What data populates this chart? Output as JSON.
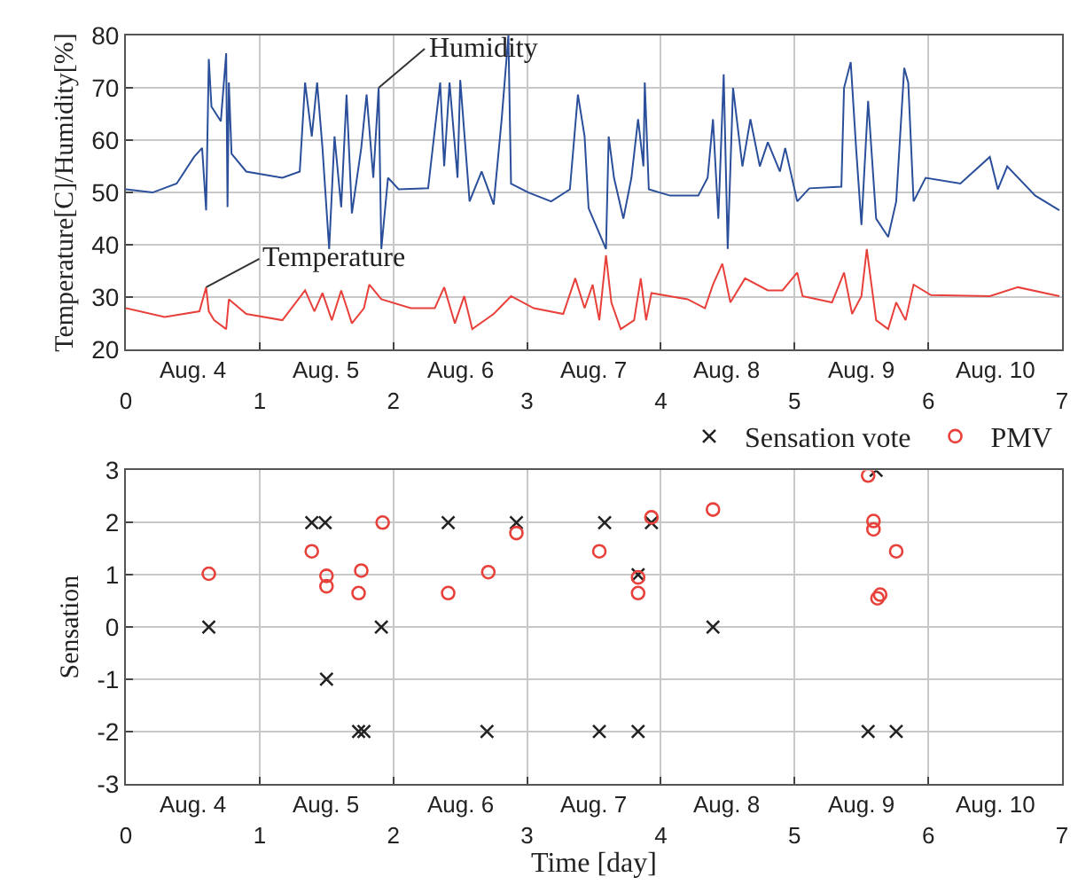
{
  "chart_data": [
    {
      "type": "line",
      "ylabel": "Temperature[C]/Humidity[%]",
      "xlim": [
        0,
        7
      ],
      "xticks": [
        0,
        1,
        2,
        3,
        4,
        5,
        6,
        7
      ],
      "ylim": [
        20,
        80
      ],
      "yticks": [
        20,
        30,
        40,
        50,
        60,
        70,
        80
      ],
      "grid": true,
      "legend": false,
      "line_style": "solid",
      "marker": "none",
      "annotations": [
        {
          "text": "Humidity",
          "x": 1.89,
          "y": 70
        },
        {
          "text": "Temperature",
          "x": 0.6,
          "y": 31.9
        },
        "Aug. 4",
        "Aug. 5",
        "Aug. 6",
        "Aug. 7",
        "Aug. 8",
        "Aug. 9",
        "Aug. 10"
      ],
      "series": [
        {
          "color": "#2b4f9a",
          "x": [
            0,
            0.2,
            0.38,
            0.51,
            0.57,
            0.6,
            0.62,
            0.64,
            0.71,
            0.75,
            0.76,
            0.77,
            0.79,
            0.9,
            1.17,
            1.3,
            1.34,
            1.39,
            1.43,
            1.47,
            1.52,
            1.56,
            1.61,
            1.65,
            1.69,
            1.76,
            1.8,
            1.85,
            1.89,
            1.91,
            1.96,
            2.04,
            2.26,
            2.35,
            2.38,
            2.42,
            2.48,
            2.5,
            2.57,
            2.66,
            2.75,
            2.81,
            2.86,
            2.88,
            3.01,
            3.18,
            3.32,
            3.38,
            3.43,
            3.46,
            3.59,
            3.61,
            3.65,
            3.72,
            3.78,
            3.83,
            3.87,
            3.88,
            3.91,
            4.07,
            4.28,
            4.35,
            4.39,
            4.43,
            4.47,
            4.5,
            4.54,
            4.61,
            4.67,
            4.74,
            4.8,
            4.89,
            4.93,
            5.02,
            5.11,
            5.35,
            5.37,
            5.42,
            5.46,
            5.5,
            5.55,
            5.61,
            5.7,
            5.76,
            5.82,
            5.85,
            5.89,
            5.98,
            6.24,
            6.46,
            6.52,
            6.59,
            6.8,
            6.98
          ],
          "values": [
            50.6,
            50,
            51.7,
            56.8,
            58.5,
            46.6,
            75.5,
            66.4,
            63.6,
            76.6,
            47.2,
            71,
            57.4,
            54,
            52.8,
            54,
            71,
            60.7,
            71,
            58.5,
            39.2,
            60.7,
            47.2,
            68.7,
            46,
            58.5,
            68.7,
            52.8,
            70,
            39.2,
            52.8,
            50.6,
            50.8,
            71,
            55,
            71,
            52.8,
            71.5,
            48.3,
            54,
            47.7,
            64,
            80,
            51.7,
            50,
            48.3,
            50.6,
            68.7,
            60.7,
            47,
            39.2,
            60.7,
            52.8,
            45,
            52.8,
            64,
            55,
            71,
            50.6,
            49.4,
            49.4,
            52.8,
            64,
            45,
            72.6,
            39.2,
            70,
            55,
            64,
            55,
            59.6,
            54,
            58.5,
            48.3,
            50.8,
            51.1,
            70,
            74.9,
            58.5,
            43.8,
            67.5,
            45,
            41.5,
            48.3,
            73.8,
            71,
            48.3,
            52.8,
            51.7,
            56.8,
            50.6,
            55,
            49.4,
            46.6
          ]
        },
        {
          "color": "#e8403a",
          "x": [
            0,
            0.29,
            0.55,
            0.6,
            0.62,
            0.66,
            0.75,
            0.77,
            0.9,
            1.17,
            1.34,
            1.41,
            1.47,
            1.54,
            1.61,
            1.69,
            1.78,
            1.82,
            1.91,
            2.13,
            2.31,
            2.38,
            2.46,
            2.53,
            2.59,
            2.75,
            2.88,
            3.05,
            3.27,
            3.36,
            3.43,
            3.49,
            3.54,
            3.59,
            3.63,
            3.7,
            3.8,
            3.85,
            3.89,
            3.93,
            4.2,
            4.33,
            4.39,
            4.46,
            4.52,
            4.63,
            4.8,
            4.91,
            5.02,
            5.06,
            5.28,
            5.37,
            5.43,
            5.5,
            5.54,
            5.61,
            5.7,
            5.76,
            5.83,
            5.89,
            6.02,
            6.46,
            6.67,
            6.98
          ],
          "values": [
            27.9,
            26.2,
            27.3,
            31.9,
            27.3,
            25.6,
            23.9,
            29.6,
            26.8,
            25.6,
            31.3,
            27.3,
            30.8,
            25.6,
            31.3,
            25,
            27.9,
            32.4,
            29.6,
            27.9,
            27.9,
            31.9,
            25,
            30.2,
            23.9,
            26.8,
            30.2,
            27.9,
            26.8,
            33.6,
            27.9,
            32.4,
            25.6,
            38,
            29,
            23.9,
            25.6,
            33.6,
            25.6,
            30.8,
            29.6,
            27.9,
            32.4,
            36.4,
            29,
            33.6,
            31.3,
            31.3,
            34.7,
            30.2,
            29,
            34.7,
            26.8,
            30.2,
            39.2,
            25.6,
            23.9,
            29,
            25.6,
            32.4,
            30.4,
            30.2,
            31.9,
            30.2
          ]
        }
      ]
    },
    {
      "type": "scatter",
      "ylabel": "Sensation",
      "xlabel": "Time [day]",
      "xlim": [
        0,
        7
      ],
      "xticks": [
        0,
        1,
        2,
        3,
        4,
        5,
        6,
        7
      ],
      "ylim": [
        -3,
        3
      ],
      "annotations": [
        "Aug. 4",
        "Aug. 5",
        "Aug. 6",
        "Aug. 7",
        "Aug. 8",
        "Aug. 9",
        "Aug. 10"
      ],
      "yticks": [
        -3,
        -2,
        -1,
        0,
        1,
        2,
        3
      ],
      "grid": true,
      "legend": "top right",
      "series": [
        {
          "name": "Sensation vote",
          "color": "#222222",
          "marker": "cross",
          "x": [
            0.62,
            1.39,
            1.49,
            1.5,
            1.74,
            1.78,
            1.91,
            2.41,
            2.7,
            2.92,
            3.54,
            3.58,
            3.83,
            3.83,
            3.93,
            4.39,
            5.61,
            5.55,
            5.76
          ],
          "values": [
            0,
            2,
            2,
            -1,
            -2,
            -2,
            0,
            2,
            -2,
            2,
            -2,
            2,
            -2,
            1,
            2,
            0,
            3,
            -2,
            -2
          ]
        },
        {
          "name": "PMV",
          "color": "#e8403a",
          "marker": "circle",
          "x": [
            0.62,
            1.39,
            1.5,
            1.5,
            1.74,
            1.76,
            1.92,
            2.41,
            2.71,
            2.92,
            3.54,
            3.83,
            3.83,
            3.93,
            4.39,
            5.55,
            5.59,
            5.59,
            5.62,
            5.64,
            5.76
          ],
          "values": [
            1.02,
            1.45,
            0.98,
            0.78,
            0.65,
            1.08,
            2.0,
            0.65,
            1.05,
            1.8,
            1.45,
            0.95,
            0.65,
            2.1,
            2.25,
            2.9,
            2.03,
            1.87,
            0.55,
            0.62,
            1.45
          ]
        }
      ]
    }
  ]
}
